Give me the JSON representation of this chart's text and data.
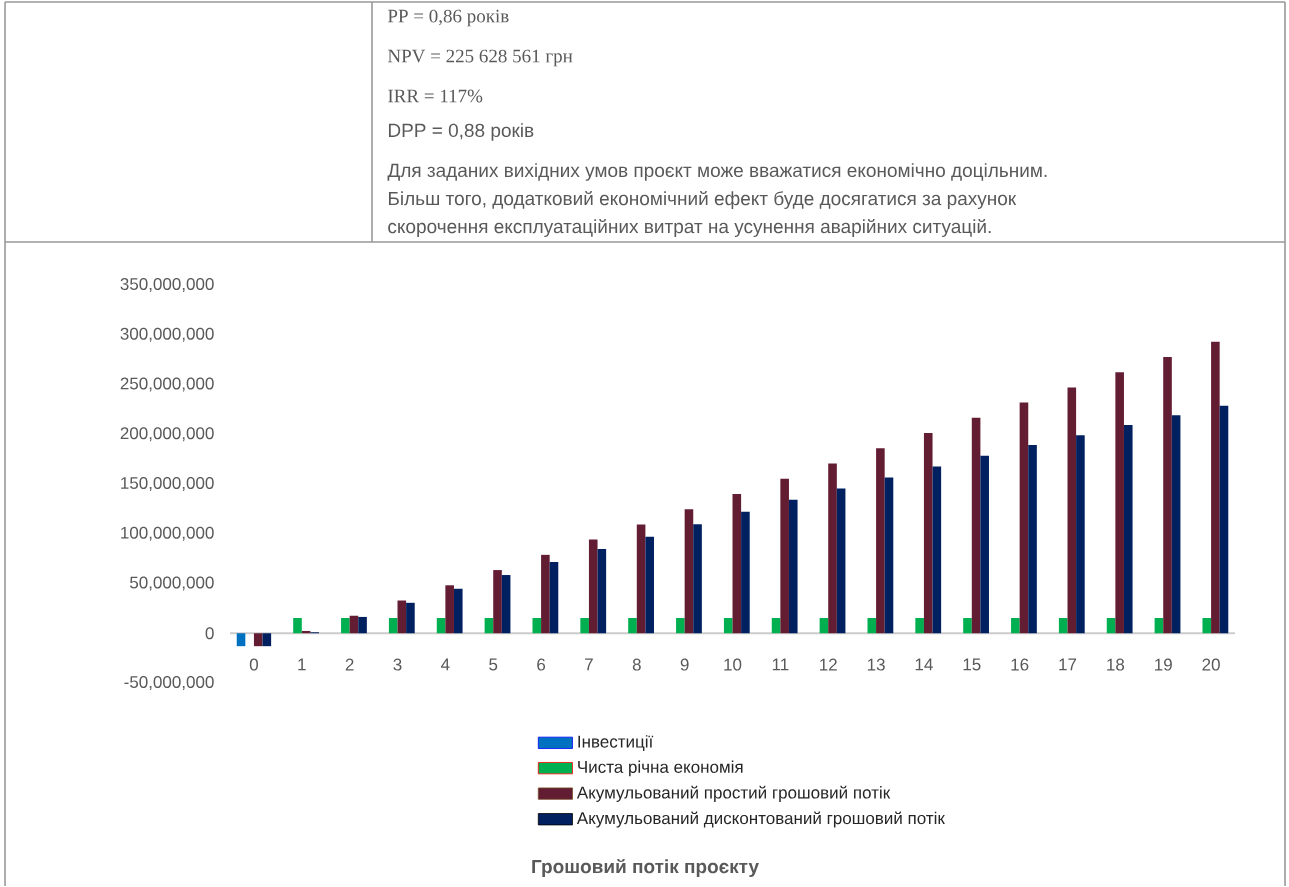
{
  "chart_data": {
    "type": "bar",
    "title": "Грошовий потік проєкту",
    "annotations": [
      "PP = 0,86 років",
      "NPV = 225 628 561 грн",
      "IRR = 117%",
      "DPP = 0,88  років",
      "Для заданих вихідних умов проєкт може вважатися економічно доцільним.",
      "Більш того, додатковий економічний ефект буде досягатися за рахунок",
      "скорочення експлуатаційних витрат на усунення аварійних ситуацій."
    ],
    "categories": [
      "0",
      "1",
      "2",
      "3",
      "4",
      "5",
      "6",
      "7",
      "8",
      "9",
      "10",
      "11",
      "12",
      "13",
      "14",
      "15",
      "16",
      "17",
      "18",
      "19",
      "20"
    ],
    "series": [
      {
        "name": "Інвестиції",
        "color": "#0070c0",
        "values": [
          -13000000,
          null,
          null,
          null,
          null,
          null,
          null,
          null,
          null,
          null,
          null,
          null,
          null,
          null,
          null,
          null,
          null,
          null,
          null,
          null,
          null
        ]
      },
      {
        "name": "Чиста річна економія",
        "color": "#00b050",
        "values": [
          null,
          15300000,
          15300000,
          15300000,
          15300000,
          15300000,
          15300000,
          15300000,
          15300000,
          15300000,
          15300000,
          15300000,
          15300000,
          15300000,
          15300000,
          15300000,
          15300000,
          15300000,
          15300000,
          15300000,
          15300000
        ]
      },
      {
        "name": "Акумульований простий грошовий потік",
        "color": "#631d33",
        "values": [
          -13000000,
          2300000,
          17600000,
          32900000,
          48200000,
          63500000,
          78800000,
          94100000,
          109400000,
          124700000,
          140000000,
          155300000,
          170600000,
          185900000,
          201200000,
          216500000,
          231800000,
          247100000,
          262400000,
          277700000,
          293000000
        ]
      },
      {
        "name": "Акумульований дисконтований  грошовий потік",
        "color": "#002060",
        "values": [
          -13000000,
          1000000,
          16400000,
          30600000,
          44700000,
          58500000,
          71600000,
          84700000,
          97100000,
          109600000,
          122000000,
          134100000,
          145500000,
          156600000,
          167600000,
          178400000,
          189100000,
          199100000,
          209400000,
          219100000,
          228700000
        ]
      }
    ],
    "ylim": [
      -50000000,
      350000000
    ],
    "yticks": [
      {
        "value": -50000000,
        "label": "-50,000,000"
      },
      {
        "value": 0,
        "label": "0"
      },
      {
        "value": 50000000,
        "label": "50,000,000"
      },
      {
        "value": 100000000,
        "label": "100,000,000"
      },
      {
        "value": 150000000,
        "label": "150,000,000"
      },
      {
        "value": 200000000,
        "label": "200,000,000"
      },
      {
        "value": 250000000,
        "label": "250,000,000"
      },
      {
        "value": 300000000,
        "label": "300,000,000"
      },
      {
        "value": 350000000,
        "label": "350,000,000"
      }
    ],
    "legend": "bottom"
  }
}
